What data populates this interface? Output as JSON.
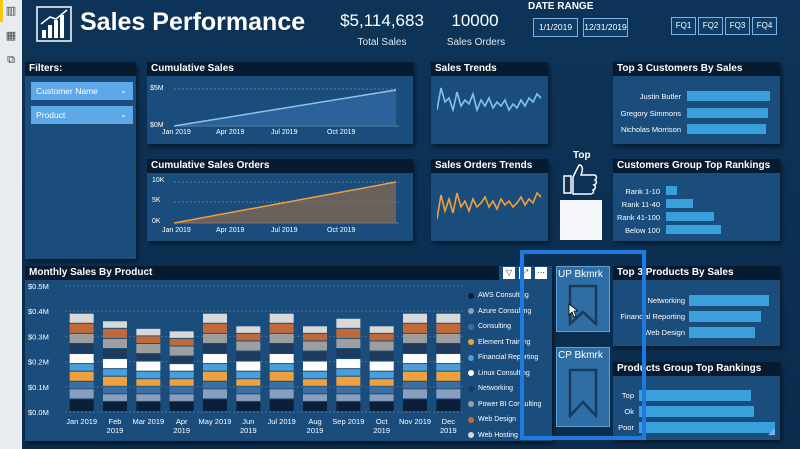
{
  "app": {
    "left_icons": [
      "report-icon",
      "table-icon",
      "model-icon"
    ]
  },
  "header": {
    "title": "Sales Performance",
    "total_sales_value": "$5,114,683",
    "total_sales_label": "Total Sales",
    "sales_orders_value": "10000",
    "sales_orders_label": "Sales Orders",
    "date_range_label": "DATE RANGE",
    "date_start": "1/1/2019",
    "date_end": "12/31/2019",
    "fq_buttons": [
      "FQ1",
      "FQ2",
      "FQ3",
      "FQ4"
    ]
  },
  "filters": {
    "title": "Filters:",
    "slicers": [
      "Customer Name",
      "Product"
    ]
  },
  "cumulative_sales": {
    "title": "Cumulative Sales",
    "y_ticks": [
      "$5M",
      "$0M"
    ],
    "x_ticks": [
      "Jan 2019",
      "Apr 2019",
      "Jul 2019",
      "Oct 2019"
    ]
  },
  "cumulative_orders": {
    "title": "Cumulative Sales Orders",
    "y_ticks": [
      "10K",
      "5K",
      "0K"
    ],
    "x_ticks": [
      "Jan 2019",
      "Apr 2019",
      "Jul 2019",
      "Oct 2019"
    ]
  },
  "sales_trends": {
    "title": "Sales Trends"
  },
  "orders_trends": {
    "title": "Sales Orders Trends"
  },
  "top_customers": {
    "title": "Top 3 Customers By Sales",
    "rows": [
      "Justin Butler",
      "Gregory Simmons",
      "Nicholas Morrison"
    ],
    "values": [
      0.83,
      0.81,
      0.79
    ]
  },
  "customer_rankings": {
    "title": "Customers Group Top Rankings",
    "rows": [
      "Rank 1-10",
      "Rank 11-40",
      "Rank 41-100",
      "Below 100"
    ],
    "values": [
      0.11,
      0.27,
      0.48,
      0.55
    ]
  },
  "top_label": "Top",
  "monthly_sales": {
    "title": "Monthly Sales By Product"
  },
  "bookmarks": {
    "up_label": "UP Bkmrk",
    "cp_label": "CP Bkmrk"
  },
  "top_products": {
    "title": "Top 3 Products By Sales",
    "rows": [
      "Networking",
      "Financial Reporting",
      "Web Design"
    ],
    "values": [
      0.75,
      0.68,
      0.62
    ]
  },
  "product_rankings": {
    "title": "Products Group Top Rankings",
    "rows": [
      "Top",
      "Ok",
      "Poor"
    ],
    "values": [
      0.6,
      0.62,
      0.73
    ]
  },
  "chart_data": {
    "type": "bar",
    "title": "Monthly Sales By Product",
    "categories": [
      "Jan 2019",
      "Feb 2019",
      "Mar 2019",
      "Apr 2019",
      "May 2019",
      "Jun 2019",
      "Jul 2019",
      "Aug 2019",
      "Sep 2019",
      "Oct 2019",
      "Nov 2019",
      "Dec 2019"
    ],
    "y_ticks": [
      "$0.5M",
      "$0.4M",
      "$0.3M",
      "$0.2M",
      "$0.1M",
      "$0.0M"
    ],
    "ylim": [
      0,
      0.5
    ],
    "stacked": true,
    "series": [
      {
        "name": "AWS Consulting",
        "color": "#0a1f3a",
        "values": [
          0.05,
          0.04,
          0.04,
          0.04,
          0.05,
          0.04,
          0.05,
          0.04,
          0.04,
          0.04,
          0.05,
          0.05
        ]
      },
      {
        "name": "Azure Consulting",
        "color": "#8a9fbe",
        "values": [
          0.04,
          0.03,
          0.03,
          0.03,
          0.04,
          0.03,
          0.04,
          0.03,
          0.03,
          0.03,
          0.04,
          0.04
        ]
      },
      {
        "name": "Consulting",
        "color": "#3d6fa3",
        "values": [
          0.03,
          0.03,
          0.03,
          0.03,
          0.03,
          0.03,
          0.03,
          0.03,
          0.03,
          0.03,
          0.03,
          0.03
        ]
      },
      {
        "name": "Element Training",
        "color": "#f0a03c",
        "values": [
          0.04,
          0.04,
          0.03,
          0.03,
          0.04,
          0.03,
          0.04,
          0.03,
          0.04,
          0.03,
          0.04,
          0.04
        ]
      },
      {
        "name": "Financial Reporting",
        "color": "#4a9fd8",
        "values": [
          0.03,
          0.03,
          0.03,
          0.03,
          0.03,
          0.03,
          0.03,
          0.03,
          0.03,
          0.03,
          0.03,
          0.03
        ]
      },
      {
        "name": "Linux Consulting",
        "color": "#ffffff",
        "values": [
          0.04,
          0.04,
          0.04,
          0.03,
          0.04,
          0.04,
          0.04,
          0.04,
          0.04,
          0.04,
          0.04,
          0.04
        ]
      },
      {
        "name": "Networking",
        "color": "#1e3a5f",
        "values": [
          0.04,
          0.04,
          0.03,
          0.03,
          0.04,
          0.04,
          0.04,
          0.04,
          0.04,
          0.04,
          0.04,
          0.04
        ]
      },
      {
        "name": "Power BI Consulting",
        "color": "#9e9e9e",
        "values": [
          0.04,
          0.04,
          0.04,
          0.04,
          0.04,
          0.04,
          0.04,
          0.04,
          0.04,
          0.04,
          0.04,
          0.04
        ]
      },
      {
        "name": "Web Design",
        "color": "#c06a3a",
        "values": [
          0.04,
          0.04,
          0.03,
          0.03,
          0.04,
          0.03,
          0.04,
          0.03,
          0.04,
          0.03,
          0.04,
          0.04
        ]
      },
      {
        "name": "Web Hosting",
        "color": "#d8d8d8",
        "values": [
          0.04,
          0.03,
          0.03,
          0.03,
          0.04,
          0.03,
          0.04,
          0.03,
          0.04,
          0.03,
          0.04,
          0.04
        ]
      }
    ]
  }
}
